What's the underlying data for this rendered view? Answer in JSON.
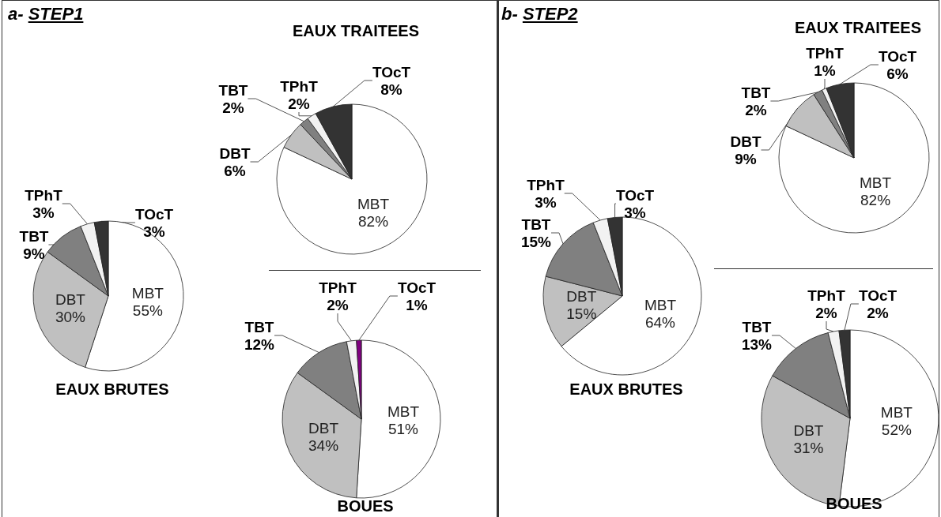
{
  "chart_data": [
    {
      "type": "pie",
      "title": "EAUX BRUTES",
      "annotations": [
        "a- STEP1"
      ],
      "categories": [
        "MBT",
        "DBT",
        "TBT",
        "TPhT",
        "TOcT"
      ],
      "values": [
        55,
        30,
        9,
        3,
        3
      ],
      "value_labels": [
        "55%",
        "30%",
        "9%",
        "3%",
        "3%"
      ],
      "colors": [
        "#ffffff",
        "#c0c0c0",
        "#808080",
        "#f2f2f2",
        "#333333"
      ]
    },
    {
      "type": "pie",
      "title": "EAUX TRAITEES",
      "categories": [
        "MBT",
        "DBT",
        "TBT",
        "TPhT",
        "TOcT"
      ],
      "values": [
        82,
        6,
        2,
        2,
        8
      ],
      "value_labels": [
        "82%",
        "6%",
        "2%",
        "2%",
        "8%"
      ],
      "colors": [
        "#ffffff",
        "#c0c0c0",
        "#808080",
        "#f2f2f2",
        "#333333"
      ]
    },
    {
      "type": "pie",
      "title": "BOUES",
      "categories": [
        "MBT",
        "DBT",
        "TBT",
        "TPhT",
        "TOcT"
      ],
      "values": [
        51,
        34,
        12,
        2,
        1
      ],
      "value_labels": [
        "51%",
        "34%",
        "12%",
        "2%",
        "1%"
      ],
      "colors": [
        "#ffffff",
        "#c0c0c0",
        "#808080",
        "#f2f2f2",
        "#800080"
      ]
    },
    {
      "type": "pie",
      "title": "EAUX BRUTES",
      "annotations": [
        "b- STEP2"
      ],
      "categories": [
        "MBT",
        "DBT",
        "TBT",
        "TPhT",
        "TOcT"
      ],
      "values": [
        64,
        15,
        15,
        3,
        3
      ],
      "value_labels": [
        "64%",
        "15%",
        "15%",
        "3%",
        "3%"
      ],
      "colors": [
        "#ffffff",
        "#c0c0c0",
        "#808080",
        "#f2f2f2",
        "#333333"
      ]
    },
    {
      "type": "pie",
      "title": "EAUX TRAITEES",
      "categories": [
        "MBT",
        "DBT",
        "TBT",
        "TPhT",
        "TOcT"
      ],
      "values": [
        82,
        9,
        2,
        1,
        6
      ],
      "value_labels": [
        "82%",
        "9%",
        "2%",
        "1%",
        "6%"
      ],
      "colors": [
        "#ffffff",
        "#c0c0c0",
        "#808080",
        "#f2f2f2",
        "#333333"
      ]
    },
    {
      "type": "pie",
      "title": "BOUES",
      "categories": [
        "MBT",
        "DBT",
        "TBT",
        "TPhT",
        "TOcT"
      ],
      "values": [
        52,
        31,
        13,
        2,
        2
      ],
      "value_labels": [
        "52%",
        "31%",
        "13%",
        "2%",
        "2%"
      ],
      "colors": [
        "#ffffff",
        "#c0c0c0",
        "#808080",
        "#f2f2f2",
        "#333333"
      ]
    }
  ]
}
